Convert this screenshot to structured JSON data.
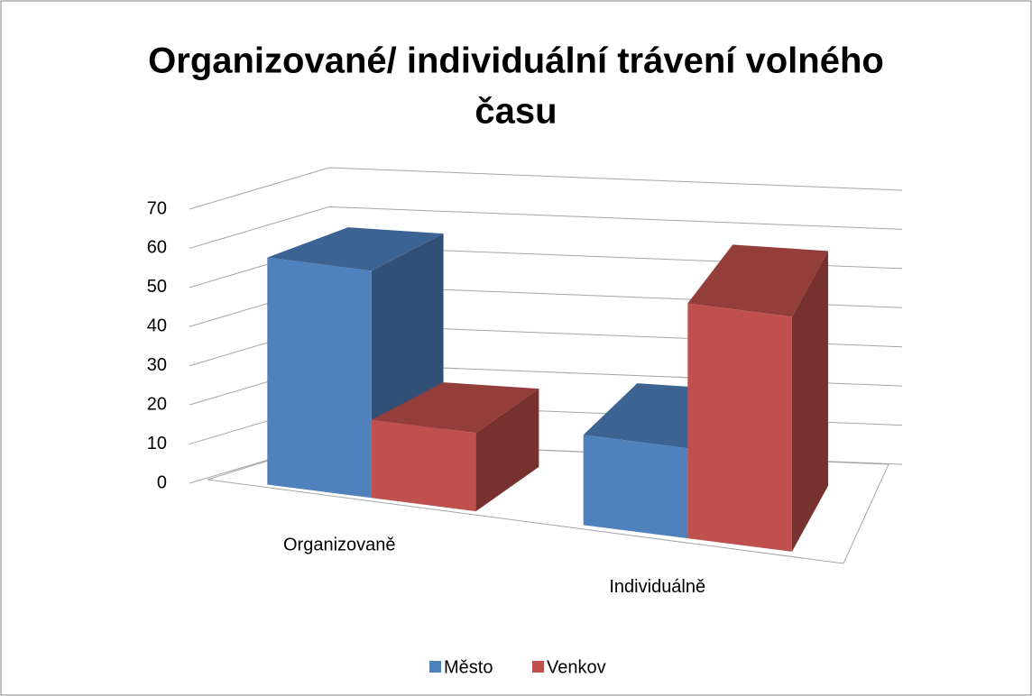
{
  "chart_data": {
    "type": "bar3d",
    "title_lines": [
      "Organizované/ individuální trávení volného",
      "času"
    ],
    "categories": [
      "Organizovaně",
      "Individuálně"
    ],
    "series": [
      {
        "name": "Město",
        "color": "#4f81bd",
        "values": [
          58,
          23
        ]
      },
      {
        "name": "Venkov",
        "color": "#c0504d",
        "values": [
          20,
          60
        ]
      }
    ],
    "ylim": [
      0,
      70
    ],
    "yticks": [
      0,
      10,
      20,
      30,
      40,
      50,
      60,
      70
    ],
    "grid": true,
    "legend": "bottom"
  }
}
